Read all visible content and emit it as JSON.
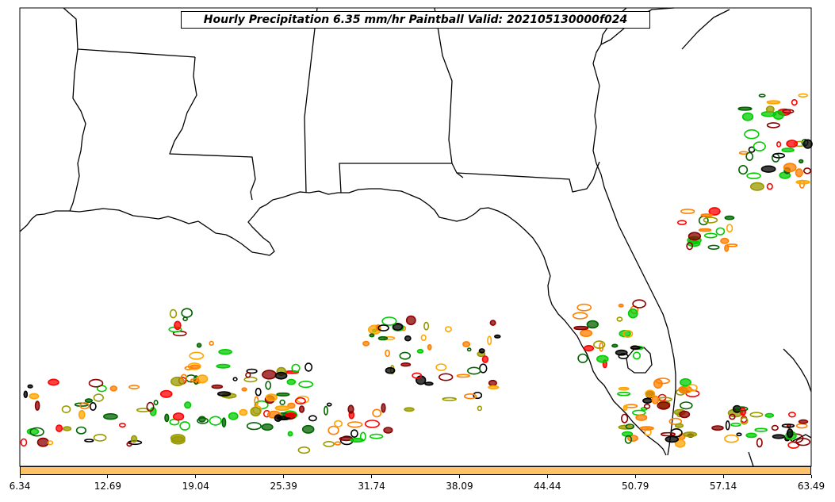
{
  "title": "Hourly Precipitation 6.35 mm/hr Paintball Valid: 202105130000f024",
  "colorbar": {
    "color": "#ffc266",
    "tick_labels": [
      "6.34",
      "12.69",
      "19.04",
      "25.39",
      "31.74",
      "38.09",
      "44.44",
      "50.79",
      "57.14",
      "63.49"
    ]
  },
  "member_colors": [
    "#000000",
    "#8b0000",
    "#ff0000",
    "#ff7f00",
    "#ffa500",
    "#00cc00",
    "#006400",
    "#999900"
  ]
}
